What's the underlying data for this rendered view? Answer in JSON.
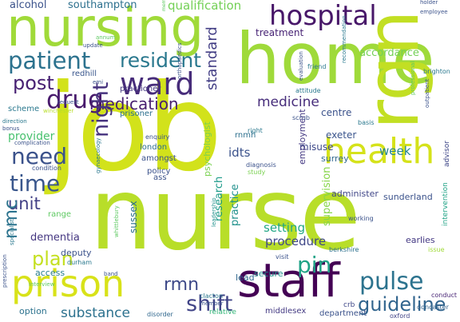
{
  "word_cloud": {
    "words": [
      {
        "text": "job",
        "color": "#d2e21b"
      },
      {
        "text": "nurse",
        "color": "#b8de29"
      },
      {
        "text": "home",
        "color": "#9fda3a"
      },
      {
        "text": "nursing",
        "color": "#a0da39"
      },
      {
        "text": "rgn",
        "color": "#c2df23"
      },
      {
        "text": "staff",
        "color": "#440154"
      },
      {
        "text": "prison",
        "color": "#d8e219"
      },
      {
        "text": "hospital",
        "color": "#481769"
      },
      {
        "text": "health",
        "color": "#d5e21a"
      },
      {
        "text": "ward",
        "color": "#472c7a"
      },
      {
        "text": "patient",
        "color": "#2c728e"
      },
      {
        "text": "pulse",
        "color": "#2c738e"
      },
      {
        "text": "drug",
        "color": "#481a6c"
      },
      {
        "text": "guideline",
        "color": "#32658e"
      },
      {
        "text": "shift",
        "color": "#414487"
      },
      {
        "text": "need",
        "color": "#3b528b"
      },
      {
        "text": "resident",
        "color": "#2a788e"
      },
      {
        "text": "medication",
        "color": "#481f70"
      },
      {
        "text": "post",
        "color": "#482173"
      },
      {
        "text": "night",
        "color": "#46327e"
      },
      {
        "text": "time",
        "color": "#39568c"
      },
      {
        "text": "plan",
        "color": "#c5e021"
      },
      {
        "text": "rmn",
        "color": "#3e4989"
      },
      {
        "text": "pin",
        "color": "#20a386"
      },
      {
        "text": "substance",
        "color": "#2c718e"
      },
      {
        "text": "unit",
        "color": "#424086"
      },
      {
        "text": "medicine",
        "color": "#472d7b"
      },
      {
        "text": "nmc",
        "color": "#2c738e"
      },
      {
        "text": "standard",
        "color": "#433e85"
      },
      {
        "text": "qualification",
        "color": "#73d056"
      },
      {
        "text": "accordance",
        "color": "#73d056"
      },
      {
        "text": "treatment",
        "color": "#482475"
      },
      {
        "text": "alcohol",
        "color": "#3b528b"
      },
      {
        "text": "southampton",
        "color": "#2d708e"
      },
      {
        "text": "dementia",
        "color": "#453781"
      },
      {
        "text": "procedure",
        "color": "#3f4788"
      },
      {
        "text": "provider",
        "color": "#48c16e"
      },
      {
        "text": "research",
        "color": "#1e9b8a"
      },
      {
        "text": "practice",
        "color": "#21918c"
      },
      {
        "text": "setting",
        "color": "#22a785"
      },
      {
        "text": "supervision",
        "color": "#86d549"
      },
      {
        "text": "misuse",
        "color": "#3e4989"
      },
      {
        "text": "week",
        "color": "#25858e"
      },
      {
        "text": "idts",
        "color": "#3b528b"
      },
      {
        "text": "secure",
        "color": "#21918c"
      },
      {
        "text": "lead",
        "color": "#31688e"
      },
      {
        "text": "administer",
        "color": "#404688"
      },
      {
        "text": "sunderland",
        "color": "#3b528b"
      },
      {
        "text": "sussex",
        "color": "#2d708e"
      },
      {
        "text": "deputy",
        "color": "#3b528b"
      },
      {
        "text": "access",
        "color": "#287d8e"
      },
      {
        "text": "option",
        "color": "#2c728e"
      },
      {
        "text": "psychologist",
        "color": "#7ad151"
      },
      {
        "text": "centre",
        "color": "#3b528b"
      },
      {
        "text": "exeter",
        "color": "#3a548c"
      },
      {
        "text": "surrey",
        "color": "#31688e"
      },
      {
        "text": "employment",
        "color": "#443983"
      },
      {
        "text": "earlies",
        "color": "#443983"
      },
      {
        "text": "intervention",
        "color": "#20a386"
      },
      {
        "text": "advisor",
        "color": "#3f4788"
      },
      {
        "text": "london",
        "color": "#2e6e8e"
      },
      {
        "text": "amongst",
        "color": "#3b528b"
      },
      {
        "text": "policy",
        "color": "#3b528b"
      },
      {
        "text": "rnmh",
        "color": "#2d708e"
      },
      {
        "text": "scheme",
        "color": "#2a788e"
      },
      {
        "text": "redhill",
        "color": "#39568c"
      },
      {
        "text": "practioner",
        "color": "#453781"
      },
      {
        "text": "prisoner",
        "color": "#2d708e"
      },
      {
        "text": "crb",
        "color": "#3f4788"
      },
      {
        "text": "relative",
        "color": "#35b779"
      },
      {
        "text": "middlesex",
        "color": "#443a83"
      },
      {
        "text": "department",
        "color": "#3b528b"
      },
      {
        "text": "doncaster",
        "color": "#33638d"
      },
      {
        "text": "conduct",
        "color": "#482475"
      },
      {
        "text": "oxford",
        "color": "#414487"
      },
      {
        "text": "clacton",
        "color": "#2a788e"
      },
      {
        "text": "member",
        "color": "#3b528b"
      },
      {
        "text": "disorder",
        "color": "#31688e"
      },
      {
        "text": "band",
        "color": "#3b528b"
      },
      {
        "text": "durham",
        "color": "#2a788e"
      },
      {
        "text": "whittlebury",
        "color": "#5ec962"
      },
      {
        "text": "leadership",
        "color": "#21918c"
      },
      {
        "text": "visit",
        "color": "#3b528b"
      },
      {
        "text": "berkshire",
        "color": "#2d708e"
      },
      {
        "text": "issue",
        "color": "#a0da39"
      },
      {
        "text": "working",
        "color": "#3b528b"
      },
      {
        "text": "orthopaedics",
        "color": "#3b528b"
      },
      {
        "text": "attitude",
        "color": "#2a788e"
      },
      {
        "text": "scrub",
        "color": "#3b528b"
      },
      {
        "text": "basis",
        "color": "#2a788e"
      },
      {
        "text": "study",
        "color": "#7ad151"
      },
      {
        "text": "diagnosis",
        "color": "#3b528b"
      },
      {
        "text": "ass",
        "color": "#3b528b"
      },
      {
        "text": "right",
        "color": "#2a788e"
      },
      {
        "text": "enquiry",
        "color": "#3b528b"
      },
      {
        "text": "gynaecology",
        "color": "#2a788e"
      },
      {
        "text": "condition",
        "color": "#3b528b"
      },
      {
        "text": "range",
        "color": "#5ec962"
      },
      {
        "text": "specialist",
        "color": "#2a788e"
      },
      {
        "text": "interview",
        "color": "#5ec962"
      },
      {
        "text": "prescription",
        "color": "#3b528b"
      },
      {
        "text": "complication",
        "color": "#3b528b"
      },
      {
        "text": "bonus",
        "color": "#3b528b"
      },
      {
        "text": "direction",
        "color": "#2a788e"
      },
      {
        "text": "request",
        "color": "#3b528b"
      },
      {
        "text": "winchester",
        "color": "#b8de29"
      },
      {
        "text": "annum",
        "color": "#5ec962"
      },
      {
        "text": "update",
        "color": "#3b528b"
      },
      {
        "text": "emi",
        "color": "#3b528b"
      },
      {
        "text": "membership",
        "color": "#5ec962"
      },
      {
        "text": "friend",
        "color": "#2a788e"
      },
      {
        "text": "evaluation",
        "color": "#3b528b"
      },
      {
        "text": "recommendation",
        "color": "#2a788e"
      },
      {
        "text": "holder",
        "color": "#3b528b"
      },
      {
        "text": "employee",
        "color": "#3b528b"
      },
      {
        "text": "brighton",
        "color": "#2a788e"
      },
      {
        "text": "professional",
        "color": "#5ec962"
      },
      {
        "text": "outpatient",
        "color": "#3b528b"
      }
    ]
  }
}
